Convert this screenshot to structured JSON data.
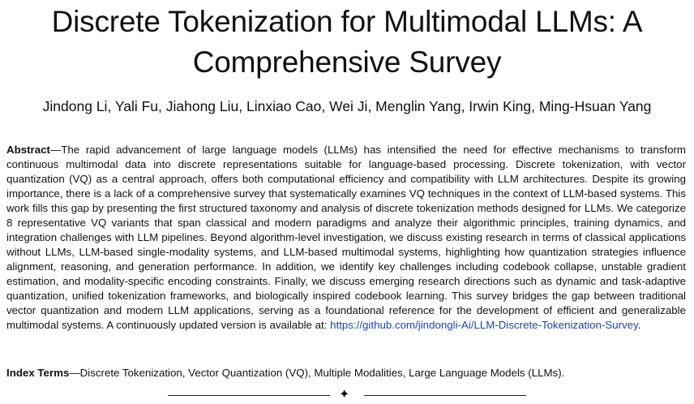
{
  "title": "Discrete Tokenization for Multimodal LLMs: A Comprehensive Survey",
  "authors": "Jindong Li, Yali Fu, Jiahong Liu, Linxiao Cao, Wei Ji, Menglin Yang, Irwin King, Ming-Hsuan Yang",
  "abstract": {
    "label": "Abstract",
    "text": "—The rapid advancement of large language models (LLMs) has intensified the need for effective mechanisms to transform continuous multimodal data into discrete representations suitable for language-based processing. Discrete tokenization, with vector quantization (VQ) as a central approach, offers both computational efficiency and compatibility with LLM architectures. Despite its growing importance, there is a lack of a comprehensive survey that systematically examines VQ techniques in the context of LLM-based systems. This work fills this gap by presenting the first structured taxonomy and analysis of discrete tokenization methods designed for LLMs. We categorize 8 representative VQ variants that span classical and modern paradigms and analyze their algorithmic principles, training dynamics, and integration challenges with LLM pipelines. Beyond algorithm-level investigation, we discuss existing research in terms of classical applications without LLMs, LLM-based single-modality systems, and LLM-based multimodal systems, highlighting how quantization strategies influence alignment, reasoning, and generation performance. In addition, we identify key challenges including codebook collapse, unstable gradient estimation, and modality-specific encoding constraints. Finally, we discuss emerging research directions such as dynamic and task-adaptive quantization, unified tokenization frameworks, and biologically inspired codebook learning. This survey bridges the gap between traditional vector quantization and modern LLM applications, serving as a foundational reference for the development of efficient and generalizable multimodal systems. A continuously updated version is available at: ",
    "link": "https://github.com/jindongli-Ai/LLM-Discrete-Tokenization-Survey",
    "end": "."
  },
  "index_terms": {
    "label": "Index Terms",
    "text": "—Discrete Tokenization, Vector Quantization (VQ), Multiple Modalities, Large Language Models (LLMs)."
  },
  "divider_glyph": "✦"
}
